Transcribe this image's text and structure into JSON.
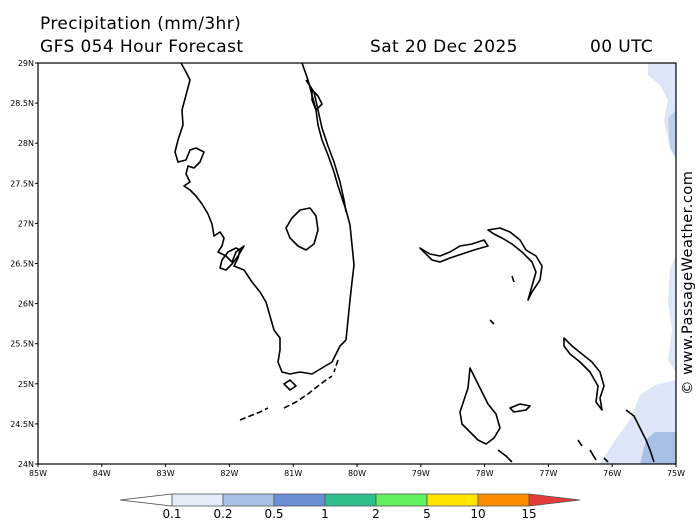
{
  "header": {
    "title": "Precipitation (mm/3hr)",
    "model": "GFS 054 Hour Forecast",
    "date": "Sat 20 Dec 2025",
    "time": "00 UTC"
  },
  "credit": "© www.PassageWeather.com",
  "map": {
    "lat_labels": [
      "29N",
      "28.5N",
      "28N",
      "27.5N",
      "27N",
      "26.5N",
      "26N",
      "25.5N",
      "25N",
      "24.5N",
      "24N"
    ],
    "lon_labels": [
      "85W",
      "84W",
      "83W",
      "82W",
      "81W",
      "80W",
      "79W",
      "78W",
      "77W",
      "76W",
      "75W"
    ],
    "lat_range": [
      24,
      29
    ],
    "lon_range": [
      -85,
      -75
    ]
  },
  "legend": {
    "labels": [
      "0.1",
      "0.2",
      "0.5",
      "1",
      "2",
      "5",
      "10",
      "15"
    ],
    "colors": [
      "#ffffff",
      "#e4ecf8",
      "#a8c0e4",
      "#6a8fd4",
      "#2ec08c",
      "#60f060",
      "#ffe400",
      "#ff8c00",
      "#e43c3c"
    ]
  },
  "precip_color": "#dde6f6",
  "precip_color_med": "#a8c0e4"
}
